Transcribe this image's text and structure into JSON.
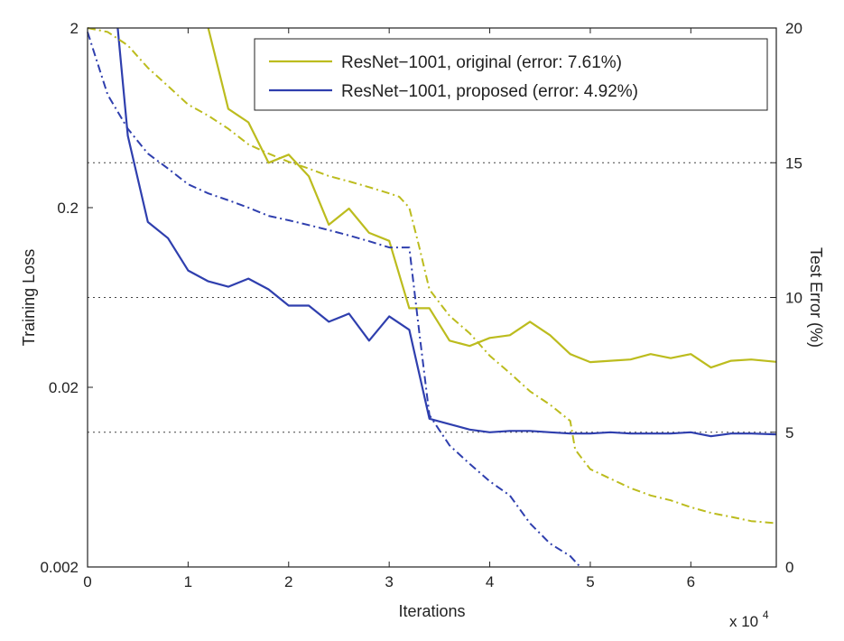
{
  "chart_data": {
    "type": "line",
    "xlabel": "Iterations",
    "x_multiplier_label": "x 10",
    "x_multiplier_exponent": "4",
    "ylabel_left": "Training Loss",
    "ylabel_right": "Test Error (%)",
    "xlim": [
      0,
      6.85
    ],
    "ylim_left": [
      0.002,
      2
    ],
    "left_scale": "log",
    "ylim_right": [
      0,
      20
    ],
    "x_ticks": [
      "0",
      "1",
      "2",
      "3",
      "4",
      "5",
      "6"
    ],
    "y_left_ticks": [
      "2",
      "0.2",
      "0.02",
      "0.002"
    ],
    "y_right_ticks": [
      "20",
      "15",
      "10",
      "5",
      "0"
    ],
    "grid": "horizontal dotted at right-axis 5, 10, 15",
    "legend_position": "top-right",
    "legend": [
      "ResNet−1001, original (error: 7.61%)",
      "ResNet−1001, proposed (error: 4.92%)"
    ],
    "colors": {
      "original": "#bcbc1e",
      "proposed": "#2f3fae"
    },
    "series": [
      {
        "name": "ResNet−1001, original (error: 7.61%)",
        "metric": "test_error_percent",
        "style": "solid",
        "x": [
          1.2,
          1.4,
          1.6,
          1.8,
          2.0,
          2.2,
          2.4,
          2.6,
          2.8,
          3.0,
          3.2,
          3.4,
          3.6,
          3.8,
          4.0,
          4.2,
          4.4,
          4.6,
          4.8,
          5.0,
          5.2,
          5.4,
          5.6,
          5.8,
          6.0,
          6.2,
          6.4,
          6.6,
          6.85
        ],
        "values": [
          20.0,
          17.0,
          16.5,
          15.0,
          15.3,
          14.5,
          12.7,
          13.3,
          12.4,
          12.1,
          9.6,
          9.6,
          8.4,
          8.2,
          8.5,
          8.6,
          9.1,
          8.6,
          7.9,
          7.6,
          7.65,
          7.7,
          7.9,
          7.75,
          7.9,
          7.4,
          7.65,
          7.7,
          7.61
        ]
      },
      {
        "name": "ResNet−1001, proposed (error: 4.92%)",
        "metric": "test_error_percent",
        "style": "solid",
        "x": [
          0.3,
          0.4,
          0.6,
          0.8,
          1.0,
          1.2,
          1.4,
          1.6,
          1.8,
          2.0,
          2.2,
          2.4,
          2.6,
          2.8,
          3.0,
          3.2,
          3.4,
          3.6,
          3.8,
          4.0,
          4.2,
          4.4,
          4.6,
          4.8,
          5.0,
          5.2,
          5.4,
          5.6,
          5.8,
          6.0,
          6.2,
          6.4,
          6.6,
          6.85
        ],
        "values": [
          20.0,
          16.0,
          12.8,
          12.2,
          11.0,
          10.6,
          10.4,
          10.7,
          10.3,
          9.7,
          9.7,
          9.1,
          9.4,
          8.4,
          9.3,
          8.8,
          5.5,
          5.3,
          5.1,
          5.0,
          5.05,
          5.05,
          5.0,
          4.95,
          4.95,
          5.0,
          4.95,
          4.95,
          4.95,
          5.0,
          4.85,
          4.95,
          4.95,
          4.92
        ]
      },
      {
        "name": "",
        "metric": "training_loss",
        "style": "dashed",
        "color_key": "original",
        "x": [
          0.0,
          0.2,
          0.4,
          0.6,
          0.8,
          1.0,
          1.2,
          1.4,
          1.6,
          1.8,
          2.0,
          2.2,
          2.4,
          2.6,
          2.8,
          3.0,
          3.1,
          3.2,
          3.3,
          3.4,
          3.6,
          3.8,
          4.0,
          4.2,
          4.4,
          4.6,
          4.8,
          4.85,
          5.0,
          5.2,
          5.4,
          5.6,
          5.8,
          6.0,
          6.2,
          6.4,
          6.6,
          6.85
        ],
        "values": [
          2.0,
          1.9,
          1.6,
          1.2,
          0.95,
          0.75,
          0.65,
          0.55,
          0.45,
          0.4,
          0.36,
          0.33,
          0.3,
          0.28,
          0.26,
          0.24,
          0.23,
          0.2,
          0.12,
          0.07,
          0.05,
          0.04,
          0.03,
          0.024,
          0.019,
          0.016,
          0.013,
          0.009,
          0.007,
          0.0062,
          0.0055,
          0.005,
          0.0047,
          0.0043,
          0.004,
          0.0038,
          0.0036,
          0.0035
        ]
      },
      {
        "name": "",
        "metric": "training_loss",
        "style": "dashed",
        "color_key": "proposed",
        "x": [
          0.0,
          0.2,
          0.4,
          0.6,
          0.8,
          1.0,
          1.2,
          1.4,
          1.6,
          1.8,
          2.0,
          2.2,
          2.4,
          2.6,
          2.8,
          3.0,
          3.2,
          3.3,
          3.4,
          3.6,
          3.8,
          4.0,
          4.2,
          4.4,
          4.6,
          4.8,
          4.9
        ],
        "values": [
          1.9,
          0.85,
          0.55,
          0.4,
          0.33,
          0.27,
          0.24,
          0.22,
          0.2,
          0.18,
          0.17,
          0.16,
          0.15,
          0.14,
          0.13,
          0.12,
          0.12,
          0.04,
          0.014,
          0.0095,
          0.0075,
          0.006,
          0.005,
          0.0035,
          0.0027,
          0.0023,
          0.002
        ]
      }
    ]
  }
}
